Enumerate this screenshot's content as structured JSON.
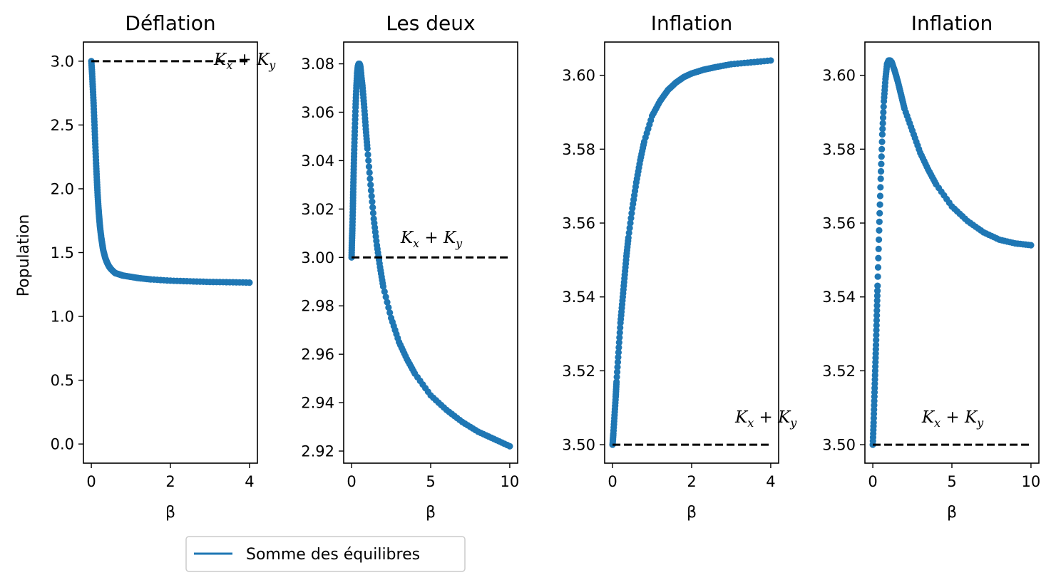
{
  "chart_data": [
    {
      "type": "scatter",
      "title": "Déflation",
      "xlabel": "β",
      "ylabel": "Population",
      "xlim": [
        -0.2,
        4.2
      ],
      "ylim": [
        -0.15,
        3.15
      ],
      "xticks": [
        0,
        2,
        4
      ],
      "xtick_labels": [
        "0",
        "2",
        "4"
      ],
      "yticks": [
        0,
        0.5,
        1,
        1.5,
        2,
        2.5,
        3
      ],
      "ytick_labels": [
        "0.0",
        "0.5",
        "1.0",
        "1.5",
        "2.0",
        "2.5",
        "3.0"
      ],
      "reference_line": {
        "y": 3.0,
        "x_range": [
          0,
          4
        ]
      },
      "annotation": {
        "text": "K_x + K_y",
        "x": 3.1,
        "y": 2.97
      },
      "series": [
        {
          "name": "Somme des équilibres",
          "color": "#1f77b4",
          "x": [
            0.0,
            0.02,
            0.04,
            0.06,
            0.08,
            0.1,
            0.12,
            0.14,
            0.16,
            0.18,
            0.2,
            0.22,
            0.25,
            0.28,
            0.3,
            0.35,
            0.4,
            0.45,
            0.5,
            0.6,
            0.7,
            0.8,
            1.0,
            1.2,
            1.5,
            2.0,
            2.5,
            3.0,
            3.5,
            4.0
          ],
          "y": [
            3.0,
            2.9,
            2.78,
            2.65,
            2.5,
            2.35,
            2.2,
            2.07,
            1.95,
            1.85,
            1.77,
            1.7,
            1.62,
            1.56,
            1.52,
            1.46,
            1.42,
            1.39,
            1.37,
            1.34,
            1.33,
            1.32,
            1.31,
            1.3,
            1.29,
            1.28,
            1.275,
            1.27,
            1.268,
            1.265
          ]
        }
      ]
    },
    {
      "type": "scatter",
      "title": "Les deux",
      "xlabel": "β",
      "ylabel": "",
      "xlim": [
        -0.5,
        10.5
      ],
      "ylim": [
        2.915,
        3.089
      ],
      "xticks": [
        0,
        5,
        10
      ],
      "xtick_labels": [
        "0",
        "5",
        "10"
      ],
      "yticks": [
        2.92,
        2.94,
        2.96,
        2.98,
        3.0,
        3.02,
        3.04,
        3.06,
        3.08
      ],
      "ytick_labels": [
        "2.92",
        "2.94",
        "2.96",
        "2.98",
        "3.00",
        "3.02",
        "3.04",
        "3.06",
        "3.08"
      ],
      "reference_line": {
        "y": 3.0,
        "x_range": [
          0,
          10
        ]
      },
      "annotation": {
        "text": "K_x + K_y",
        "x": 3.1,
        "y": 3.006
      },
      "series": [
        {
          "name": "Somme des équilibres",
          "color": "#1f77b4",
          "x": [
            0.0,
            0.02,
            0.05,
            0.08,
            0.1,
            0.13,
            0.16,
            0.2,
            0.25,
            0.3,
            0.35,
            0.4,
            0.45,
            0.5,
            0.55,
            0.6,
            0.7,
            0.8,
            0.9,
            1.0,
            1.2,
            1.4,
            1.6,
            1.8,
            2.0,
            2.5,
            3.0,
            3.5,
            4.0,
            5.0,
            6.0,
            7.0,
            8.0,
            9.0,
            10.0
          ],
          "y": [
            3.0,
            3.006,
            3.012,
            3.02,
            3.027,
            3.035,
            3.043,
            3.052,
            3.062,
            3.07,
            3.076,
            3.079,
            3.08,
            3.08,
            3.079,
            3.076,
            3.07,
            3.062,
            3.053,
            3.045,
            3.03,
            3.016,
            3.005,
            2.996,
            2.988,
            2.975,
            2.965,
            2.958,
            2.952,
            2.943,
            2.937,
            2.932,
            2.928,
            2.925,
            2.922
          ]
        }
      ]
    },
    {
      "type": "scatter",
      "title": "Inflation",
      "xlabel": "β",
      "ylabel": "",
      "xlim": [
        -0.2,
        4.2
      ],
      "ylim": [
        3.495,
        3.609
      ],
      "xticks": [
        0,
        2,
        4
      ],
      "xtick_labels": [
        "0",
        "2",
        "4"
      ],
      "yticks": [
        3.5,
        3.52,
        3.54,
        3.56,
        3.58,
        3.6
      ],
      "ytick_labels": [
        "3.50",
        "3.52",
        "3.54",
        "3.56",
        "3.58",
        "3.60"
      ],
      "reference_line": {
        "y": 3.5,
        "x_range": [
          0,
          4
        ]
      },
      "annotation": {
        "text": "K_x + K_y",
        "x": 3.1,
        "y": 3.506
      },
      "series": [
        {
          "name": "Somme des équilibres",
          "color": "#1f77b4",
          "x": [
            0.0,
            0.02,
            0.05,
            0.08,
            0.1,
            0.15,
            0.2,
            0.25,
            0.3,
            0.35,
            0.4,
            0.5,
            0.6,
            0.7,
            0.8,
            1.0,
            1.2,
            1.4,
            1.6,
            1.8,
            2.0,
            2.3,
            2.6,
            3.0,
            3.5,
            4.0
          ],
          "y": [
            3.5,
            3.503,
            3.508,
            3.513,
            3.517,
            3.525,
            3.533,
            3.539,
            3.545,
            3.551,
            3.556,
            3.564,
            3.571,
            3.577,
            3.582,
            3.589,
            3.593,
            3.596,
            3.598,
            3.5995,
            3.6005,
            3.6015,
            3.6022,
            3.603,
            3.6035,
            3.604
          ]
        }
      ]
    },
    {
      "type": "scatter",
      "title": "Inflation",
      "xlabel": "β",
      "ylabel": "",
      "xlim": [
        -0.5,
        10.5
      ],
      "ylim": [
        3.495,
        3.609
      ],
      "xticks": [
        0,
        5,
        10
      ],
      "xtick_labels": [
        "0",
        "5",
        "10"
      ],
      "yticks": [
        3.5,
        3.52,
        3.54,
        3.56,
        3.58,
        3.6
      ],
      "ytick_labels": [
        "3.50",
        "3.52",
        "3.54",
        "3.56",
        "3.58",
        "3.60"
      ],
      "reference_line": {
        "y": 3.5,
        "x_range": [
          0,
          10
        ]
      },
      "annotation": {
        "text": "K_x + K_y",
        "x": 3.1,
        "y": 3.506
      },
      "series": [
        {
          "name": "Somme des équilibres",
          "color": "#1f77b4",
          "x": [
            0.0,
            0.05,
            0.1,
            0.15,
            0.2,
            0.25,
            0.3,
            0.4,
            0.5,
            0.6,
            0.7,
            0.8,
            0.9,
            1.0,
            1.1,
            1.2,
            1.4,
            1.6,
            1.8,
            2.0,
            2.5,
            3.0,
            3.5,
            4.0,
            5.0,
            6.0,
            7.0,
            8.0,
            9.0,
            10.0
          ],
          "y": [
            3.5,
            3.506,
            3.513,
            3.52,
            3.527,
            3.535,
            3.543,
            3.558,
            3.572,
            3.584,
            3.593,
            3.599,
            3.603,
            3.604,
            3.604,
            3.6035,
            3.601,
            3.598,
            3.5945,
            3.591,
            3.585,
            3.579,
            3.5745,
            3.5705,
            3.5645,
            3.5605,
            3.5575,
            3.5555,
            3.5545,
            3.554
          ]
        }
      ]
    }
  ],
  "legend": {
    "label": "Somme des équilibres",
    "color": "#1f77b4",
    "placement": "bottom-left"
  },
  "colors": {
    "series": "#1f77b4",
    "reference": "#000000",
    "frame": "#000000"
  }
}
